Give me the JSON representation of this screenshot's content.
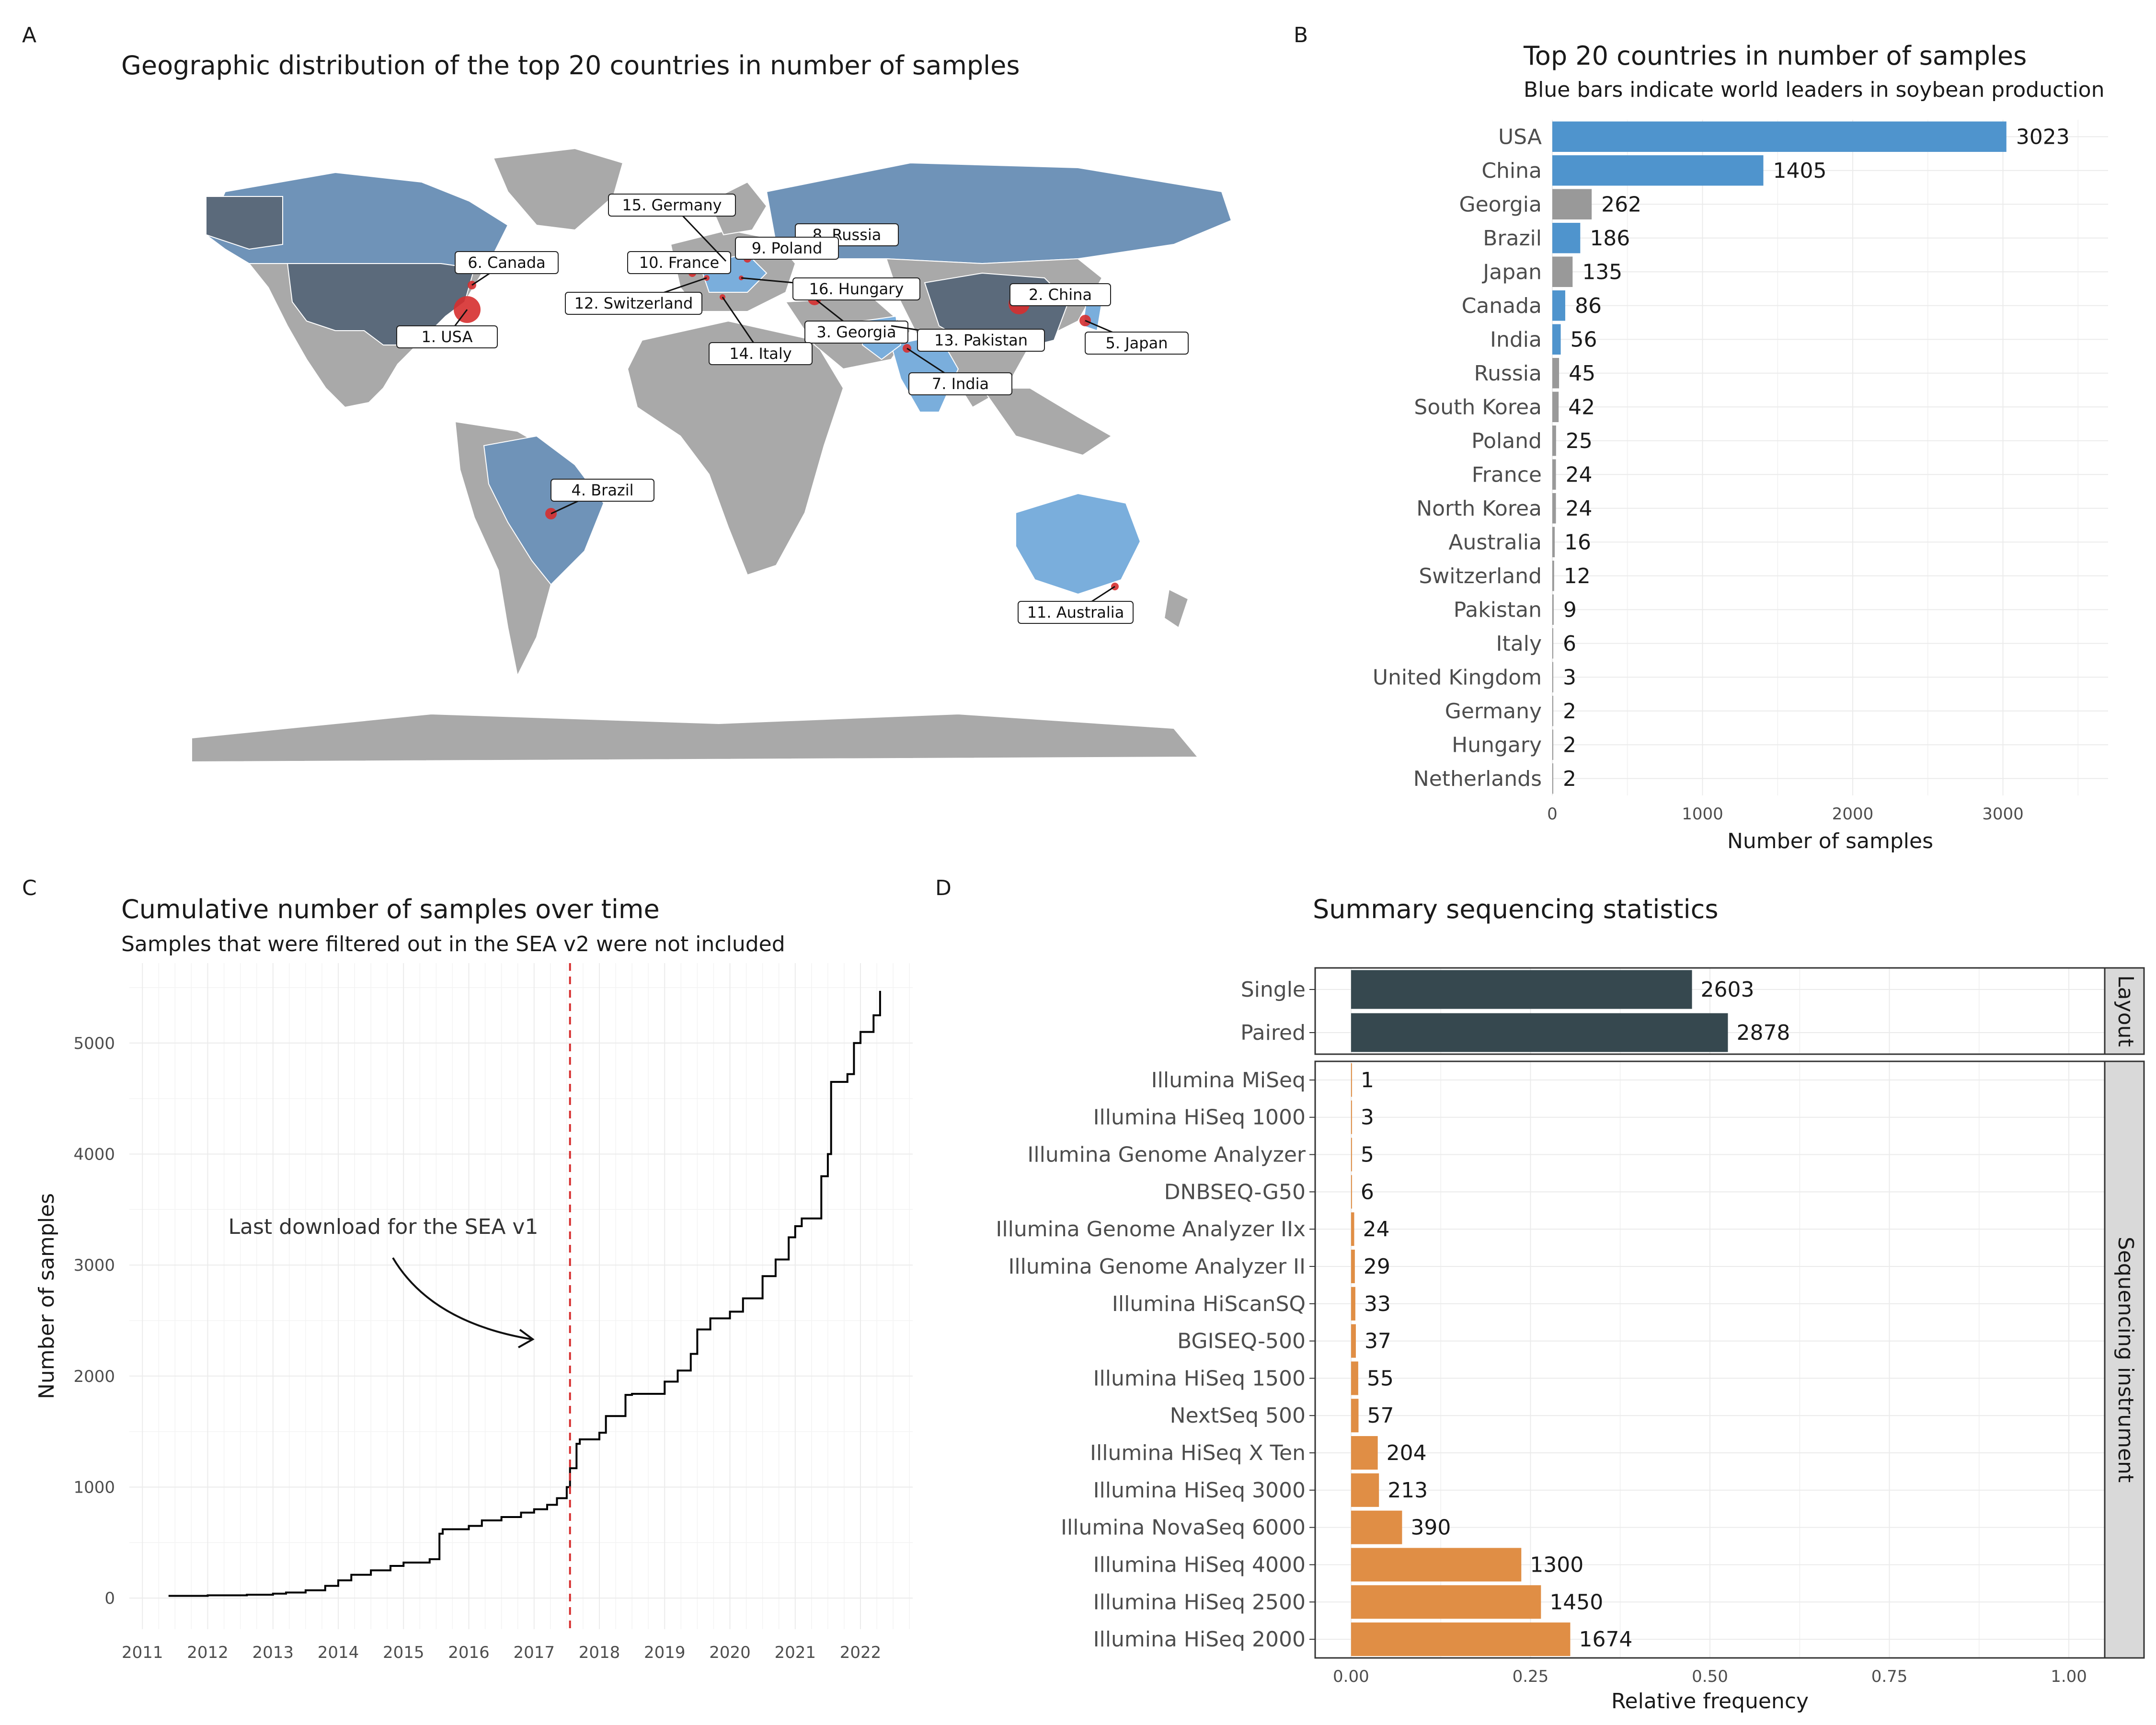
{
  "panels": {
    "a": {
      "letter": "A",
      "title": "Geographic distribution of the top 20 countries in number of samples"
    },
    "b": {
      "letter": "B",
      "title": "Top 20 countries in number of samples",
      "subtitle": "Blue bars indicate world leaders in soybean production"
    },
    "c": {
      "letter": "C",
      "title": "Cumulative number of samples over time",
      "subtitle": "Samples that were filtered out in the SEA v2 were not included"
    },
    "d": {
      "letter": "D",
      "title": "Summary sequencing statistics"
    }
  },
  "colors": {
    "leader": "#4f94cd",
    "other": "#999999",
    "layout": "#36484f",
    "instrument": "#e08e45",
    "map_land": "#a9a9a9",
    "map_dark": "#5b6a7b",
    "map_mid": "#6f93b8",
    "map_light": "#7aaedc",
    "dot": "#d62f2f",
    "vline": "#d62f2f"
  },
  "chart_data": [
    {
      "type": "map",
      "labels": [
        "1. USA",
        "2. China",
        "3. Georgia",
        "4. Brazil",
        "5. Japan",
        "6. Canada",
        "7. India",
        "8. Russia",
        "9. Poland",
        "10. France",
        "11. Australia",
        "12. Switzerland",
        "13. Pakistan",
        "14. Italy",
        "15. Germany",
        "16. Hungary"
      ]
    },
    {
      "type": "bar",
      "orientation": "horizontal",
      "categories": [
        "USA",
        "China",
        "Georgia",
        "Brazil",
        "Japan",
        "Canada",
        "India",
        "Russia",
        "South Korea",
        "Poland",
        "France",
        "North Korea",
        "Australia",
        "Switzerland",
        "Pakistan",
        "Italy",
        "United Kingdom",
        "Germany",
        "Hungary",
        "Netherlands"
      ],
      "values": [
        3023,
        1405,
        262,
        186,
        135,
        86,
        56,
        45,
        42,
        25,
        24,
        24,
        16,
        12,
        9,
        6,
        3,
        2,
        2,
        2
      ],
      "leaders": [
        true,
        true,
        false,
        true,
        false,
        true,
        true,
        false,
        false,
        false,
        false,
        false,
        false,
        false,
        false,
        false,
        false,
        false,
        false,
        false
      ],
      "xlabel": "Number of samples",
      "xticks": [
        0,
        1000,
        2000,
        3000
      ],
      "xlim": [
        0,
        3700
      ]
    },
    {
      "type": "line",
      "xlabel": "",
      "ylabel": "Number of samples",
      "xticks": [
        "2011",
        "2012",
        "2013",
        "2014",
        "2015",
        "2016",
        "2017",
        "2018",
        "2019",
        "2020",
        "2021",
        "2022"
      ],
      "yticks": [
        0,
        1000,
        2000,
        3000,
        4000,
        5000
      ],
      "xlim": [
        2010.8,
        2022.8
      ],
      "ylim": [
        -280,
        5720
      ],
      "vline_x": 2017.55,
      "annotation": "Last download for the SEA v1",
      "x": [
        2011.4,
        2012.0,
        2012.6,
        2013.0,
        2013.2,
        2013.5,
        2013.8,
        2014.0,
        2014.2,
        2014.5,
        2014.8,
        2015.0,
        2015.4,
        2015.55,
        2015.6,
        2016.0,
        2016.2,
        2016.5,
        2016.8,
        2017.0,
        2017.2,
        2017.35,
        2017.5,
        2017.55,
        2017.65,
        2017.7,
        2018.0,
        2018.1,
        2018.4,
        2018.5,
        2019.0,
        2019.2,
        2019.4,
        2019.5,
        2019.7,
        2020.0,
        2020.2,
        2020.5,
        2020.7,
        2020.9,
        2021.0,
        2021.1,
        2021.4,
        2021.5,
        2021.55,
        2021.8,
        2021.9,
        2022.0,
        2022.2,
        2022.3
      ],
      "y": [
        20,
        25,
        30,
        40,
        50,
        70,
        110,
        160,
        210,
        250,
        290,
        320,
        350,
        580,
        620,
        650,
        700,
        730,
        770,
        800,
        840,
        900,
        1000,
        1170,
        1390,
        1430,
        1490,
        1640,
        1830,
        1840,
        1950,
        2050,
        2200,
        2420,
        2520,
        2580,
        2700,
        2900,
        3050,
        3250,
        3350,
        3420,
        3800,
        4000,
        4650,
        4720,
        5000,
        5100,
        5250,
        5470
      ]
    },
    {
      "type": "bar",
      "orientation": "horizontal",
      "facets": [
        {
          "name": "Layout",
          "categories": [
            "Single",
            "Paired"
          ],
          "values": [
            2603,
            2878
          ],
          "freq": [
            0.475,
            0.525
          ]
        },
        {
          "name": "Sequencing instrument",
          "categories": [
            "Illumina MiSeq",
            "Illumina HiSeq 1000",
            "Illumina Genome Analyzer",
            "DNBSEQ-G50",
            "Illumina Genome Analyzer IIx",
            "Illumina Genome Analyzer II",
            "Illumina HiScanSQ",
            "BGISEQ-500",
            "Illumina HiSeq 1500",
            "NextSeq 500",
            "Illumina HiSeq X Ten",
            "Illumina HiSeq 3000",
            "Illumina NovaSeq 6000",
            "Illumina HiSeq 4000",
            "Illumina HiSeq 2500",
            "Illumina HiSeq 2000"
          ],
          "values": [
            1,
            3,
            5,
            6,
            24,
            29,
            33,
            37,
            55,
            57,
            204,
            213,
            390,
            1300,
            1450,
            1674
          ],
          "freq": [
            0.0002,
            0.0005,
            0.0009,
            0.0011,
            0.0044,
            0.0053,
            0.006,
            0.0067,
            0.01,
            0.0104,
            0.0372,
            0.0389,
            0.0711,
            0.2372,
            0.2646,
            0.3054
          ]
        }
      ],
      "xlabel": "Relative frequency",
      "xticks": [
        "0.00",
        "0.25",
        "0.50",
        "0.75",
        "1.00"
      ],
      "xlim": [
        -0.05,
        1.05
      ]
    }
  ]
}
